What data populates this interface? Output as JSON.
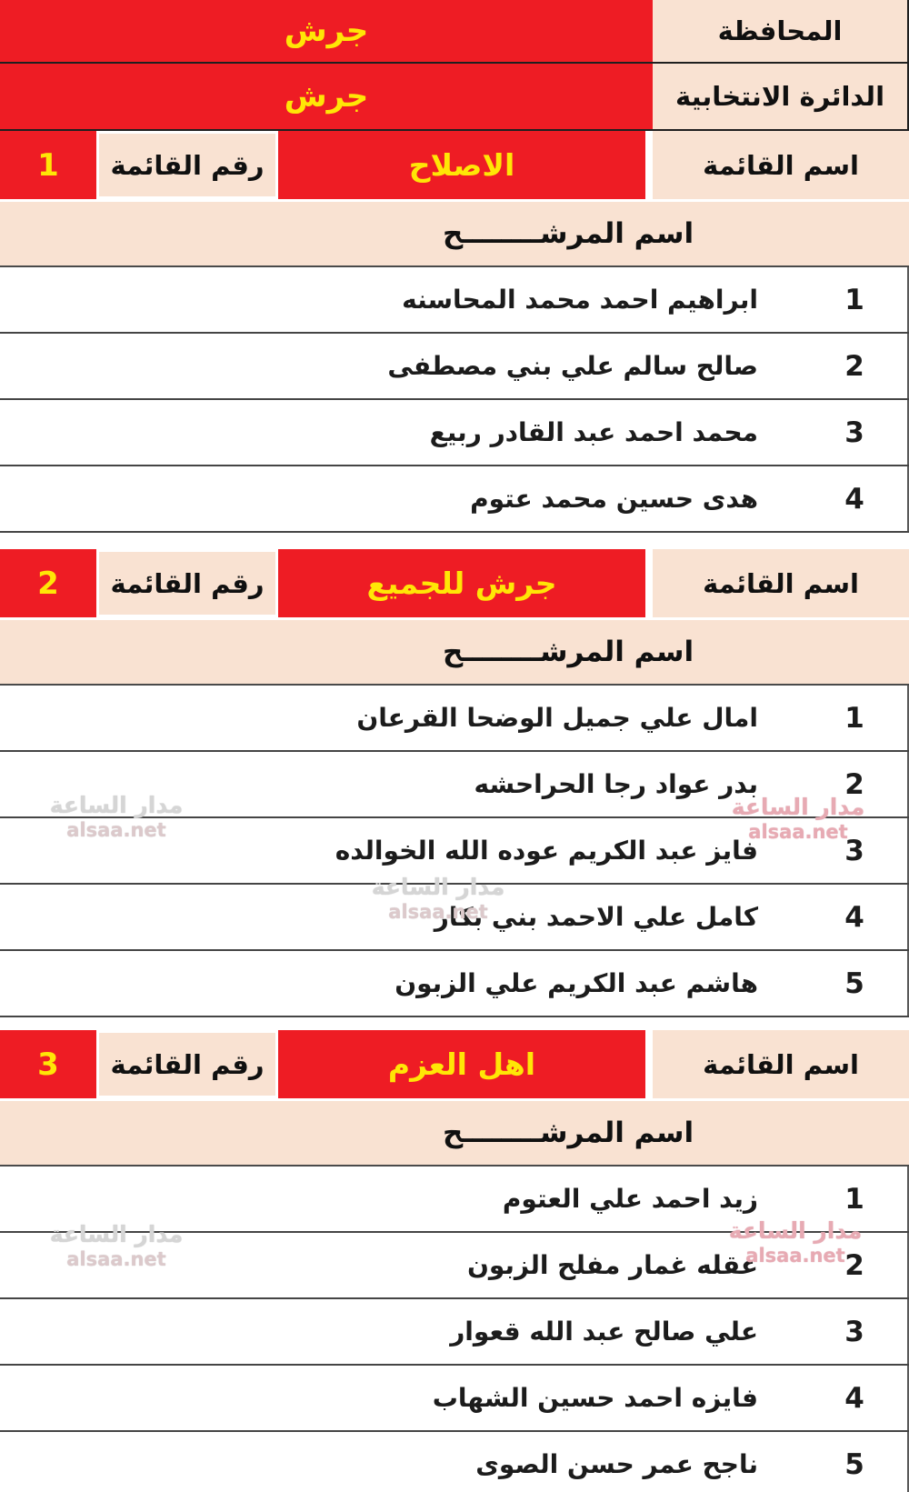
{
  "meta": {
    "governorate_label": "المحافظة",
    "governorate_value": "جرش",
    "district_label": "الدائرة الانتخابية",
    "district_value": "جرش",
    "list_name_label": "اسم القائمة",
    "list_number_label": "رقم القائمة",
    "candidate_header": "اسم المرشــــــــح"
  },
  "lists": [
    {
      "name": "الاصلاح",
      "number": "1",
      "candidates": [
        {
          "num": "1",
          "name": "ابراهيم احمد محمد المحاسنه"
        },
        {
          "num": "2",
          "name": "صالح سالم علي بني مصطفى"
        },
        {
          "num": "3",
          "name": "محمد احمد عبد القادر ربيع"
        },
        {
          "num": "4",
          "name": "هدى حسين محمد عتوم"
        }
      ]
    },
    {
      "name": "جرش للجميع",
      "number": "2",
      "candidates": [
        {
          "num": "1",
          "name": "امال علي جميل الوضحا القرعان"
        },
        {
          "num": "2",
          "name": "بدر عواد رجا الحراحشه"
        },
        {
          "num": "3",
          "name": "فايز عبد الكريم عوده الله الخوالده"
        },
        {
          "num": "4",
          "name": "كامل علي الاحمد بني بكار"
        },
        {
          "num": "5",
          "name": "هاشم عبد الكريم علي الزبون"
        }
      ]
    },
    {
      "name": "اهل العزم",
      "number": "3",
      "candidates": [
        {
          "num": "1",
          "name": "زيد احمد علي العتوم"
        },
        {
          "num": "2",
          "name": "عقله غمار مفلح الزبون"
        },
        {
          "num": "3",
          "name": "علي صالح عبد الله قعوار"
        },
        {
          "num": "4",
          "name": "فايزه احمد حسين الشهاب"
        },
        {
          "num": "5",
          "name": "ناجح عمر حسن الصوى"
        }
      ]
    }
  ],
  "watermark": {
    "line1": "مدار الساعة",
    "line2": "alsaa.net"
  },
  "colors": {
    "red": "#ee1c24",
    "cream": "#f9e2d2",
    "yellow": "#ffe606"
  }
}
